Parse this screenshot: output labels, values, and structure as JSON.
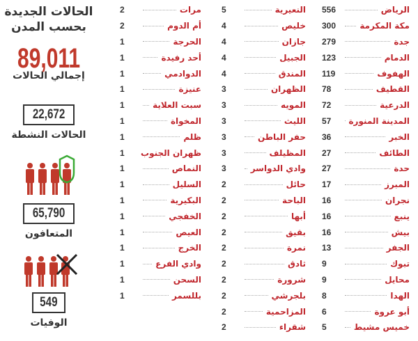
{
  "title": "الحالات الجديدة بحسب المدن",
  "title_line1": "الحالات الجديدة",
  "title_line2": "بحسب المدن",
  "stats": {
    "total": {
      "value": "89,011",
      "label": "إجمالي الحالات"
    },
    "active": {
      "value": "22,672",
      "label": "الحالات النشطة"
    },
    "recovered": {
      "value": "65,790",
      "label": "المتعافون"
    },
    "deaths": {
      "value": "549",
      "label": "الوفيات"
    }
  },
  "colors": {
    "accent": "#c0272d",
    "shield": "#3aaa35",
    "text": "#333333"
  },
  "columns": [
    [
      [
        "الرياض",
        "556"
      ],
      [
        "مكة المكرمة",
        "300"
      ],
      [
        "جدة",
        "279"
      ],
      [
        "الدمام",
        "123"
      ],
      [
        "الهفوف",
        "119"
      ],
      [
        "القطيف",
        "78"
      ],
      [
        "الدرعية",
        "72"
      ],
      [
        "المدينة المنورة",
        "57"
      ],
      [
        "الخبر",
        "36"
      ],
      [
        "الطائف",
        "27"
      ],
      [
        "حدة",
        "27"
      ],
      [
        "المبرز",
        "17"
      ],
      [
        "نجران",
        "16"
      ],
      [
        "ينبع",
        "16"
      ],
      [
        "بيش",
        "16"
      ],
      [
        "الجفر",
        "13"
      ],
      [
        "تبوك",
        "9"
      ],
      [
        "محايل",
        "9"
      ],
      [
        "الهدا",
        "8"
      ],
      [
        "أبو عروة",
        "6"
      ],
      [
        "خميس مشيط",
        "5"
      ]
    ],
    [
      [
        "النعيرية",
        "5"
      ],
      [
        "خليص",
        "4"
      ],
      [
        "جازان",
        "4"
      ],
      [
        "الجبيل",
        "4"
      ],
      [
        "المندق",
        "4"
      ],
      [
        "الظهران",
        "3"
      ],
      [
        "المويه",
        "3"
      ],
      [
        "الليث",
        "3"
      ],
      [
        "حفر الباطن",
        "3"
      ],
      [
        "المظيلف",
        "3"
      ],
      [
        "وادي الدواسر",
        "3"
      ],
      [
        "حائل",
        "2"
      ],
      [
        "الباحة",
        "2"
      ],
      [
        "أبها",
        "2"
      ],
      [
        "بقيق",
        "2"
      ],
      [
        "نمرة",
        "2"
      ],
      [
        "ثادق",
        "2"
      ],
      [
        "شرورة",
        "2"
      ],
      [
        "بلجرشي",
        "2"
      ],
      [
        "المزاحمية",
        "2"
      ],
      [
        "شقراء",
        "2"
      ]
    ],
    [
      [
        "مرات",
        "2"
      ],
      [
        "أم الدوم",
        "2"
      ],
      [
        "الحرجة",
        "1"
      ],
      [
        "أحد رفيدة",
        "1"
      ],
      [
        "الدوادمي",
        "1"
      ],
      [
        "عنيزة",
        "1"
      ],
      [
        "سبت العلاية",
        "1"
      ],
      [
        "المخواة",
        "1"
      ],
      [
        "ظلم",
        "1"
      ],
      [
        "ظهران الجنوب",
        "1"
      ],
      [
        "النماص",
        "1"
      ],
      [
        "السليل",
        "1"
      ],
      [
        "البكيرية",
        "1"
      ],
      [
        "الخفجي",
        "1"
      ],
      [
        "العيص",
        "1"
      ],
      [
        "الخرج",
        "1"
      ],
      [
        "وادي الفرع",
        "1"
      ],
      [
        "السحن",
        "1"
      ],
      [
        "بللسمر",
        "1"
      ]
    ]
  ]
}
